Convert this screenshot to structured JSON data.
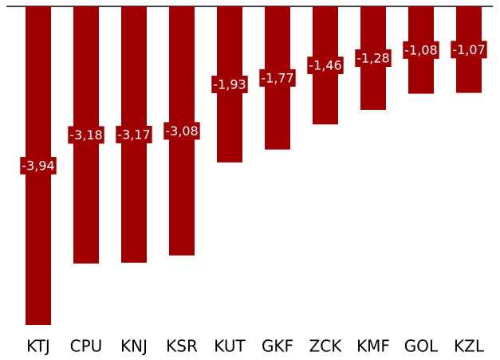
{
  "chart_data": {
    "type": "bar",
    "categories": [
      "KTJ",
      "CPU",
      "KNJ",
      "KSR",
      "KUT",
      "GKF",
      "ZCK",
      "KMF",
      "GOL",
      "KZL"
    ],
    "values": [
      -3.94,
      -3.18,
      -3.17,
      -3.08,
      -1.93,
      -1.77,
      -1.46,
      -1.28,
      -1.08,
      -1.07
    ],
    "value_labels": [
      "-3,94",
      "-3,18",
      "-3,17",
      "-3,08",
      "-1,93",
      "-1,77",
      "-1,46",
      "-1,28",
      "-1,08",
      "-1,07"
    ],
    "color": "#a00000",
    "ylim": [
      -3.94,
      0
    ]
  }
}
